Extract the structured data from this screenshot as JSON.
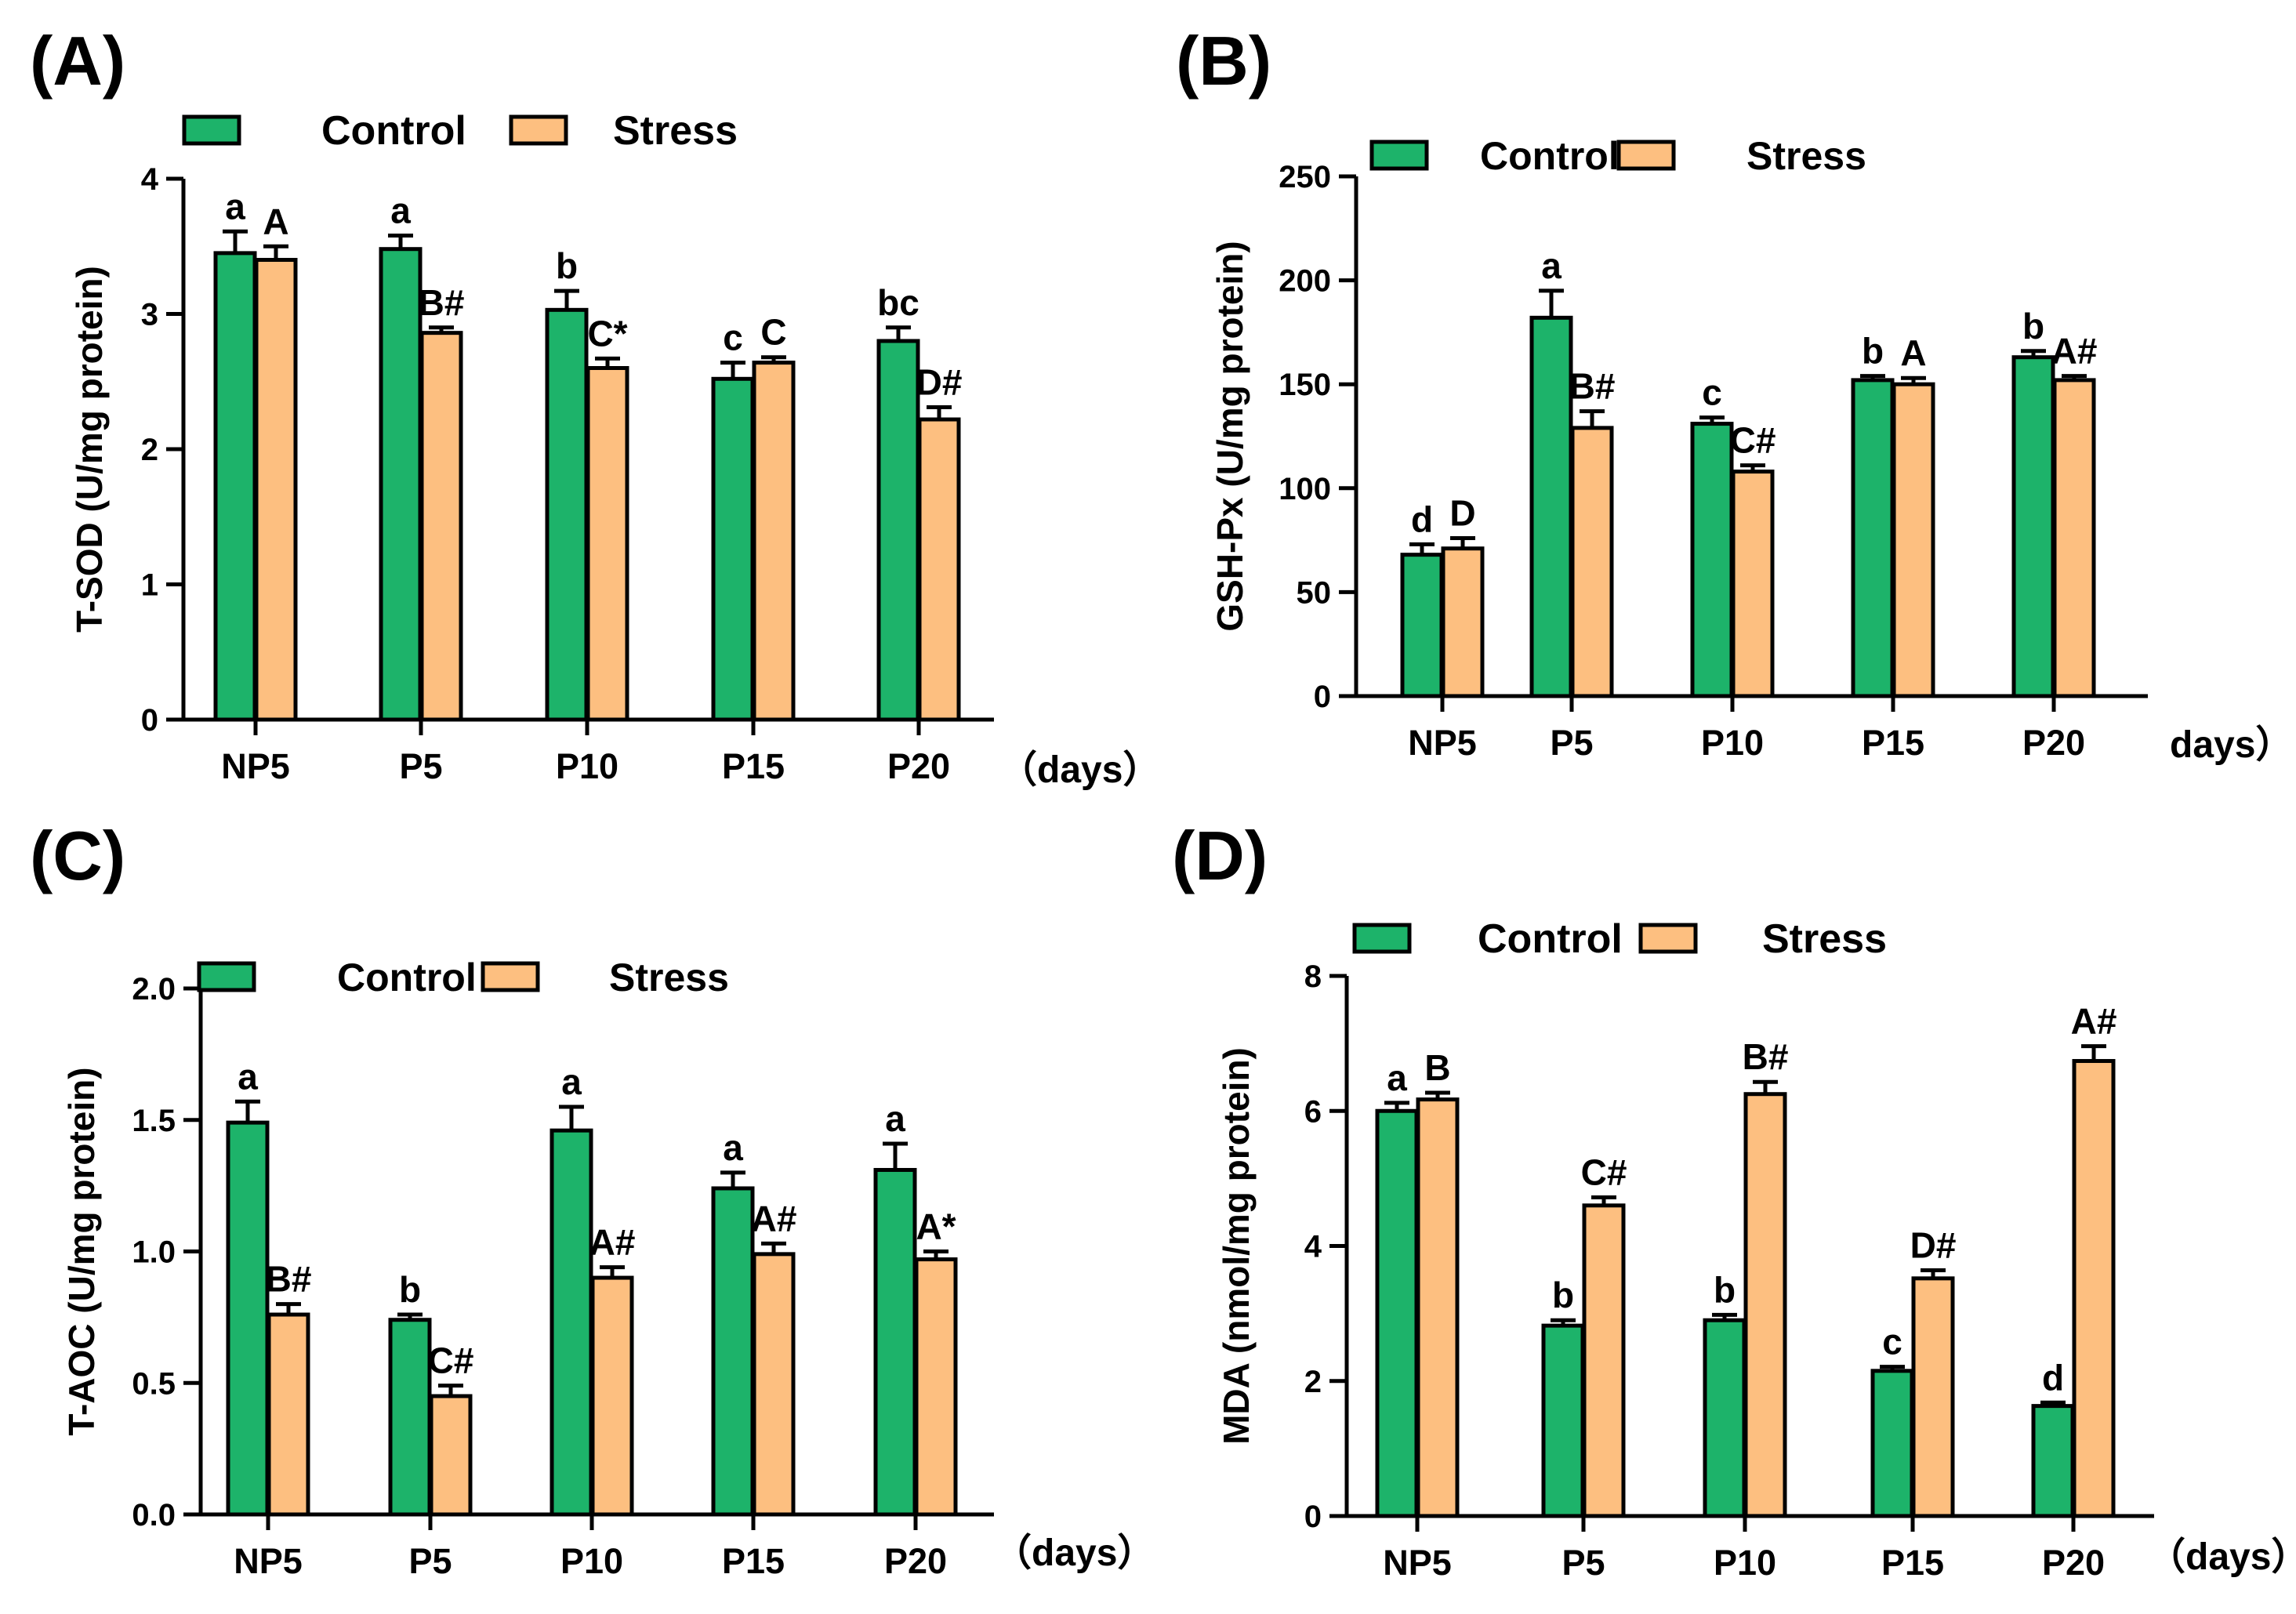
{
  "colors": {
    "control_fill": "#1db36a",
    "stress_fill": "#fdbf80",
    "stroke": "#000000"
  },
  "chart_data": [
    {
      "type": "bar",
      "panel_label": "(A)",
      "title": "",
      "categories": [
        "NP5",
        "P5",
        "P10",
        "P15",
        "P20"
      ],
      "xlabel": "（days）",
      "ylabel": "T-SOD (U/mg protein)",
      "ylim": [
        0,
        4
      ],
      "yticks": [
        "0",
        "1",
        "2",
        "3",
        "4"
      ],
      "ytick_values": [
        0,
        1,
        2,
        3,
        4
      ],
      "legend": [
        "Control",
        "Stress"
      ],
      "series": [
        {
          "name": "Control",
          "values": [
            3.45,
            3.48,
            3.03,
            2.52,
            2.8
          ],
          "errors": [
            0.16,
            0.1,
            0.14,
            0.12,
            0.1
          ],
          "labels": [
            "a",
            "a",
            "b",
            "c",
            "bc"
          ]
        },
        {
          "name": "Stress",
          "values": [
            3.4,
            2.86,
            2.6,
            2.64,
            2.22
          ],
          "errors": [
            0.1,
            0.04,
            0.07,
            0.04,
            0.09
          ],
          "labels": [
            "A",
            "B#",
            "C*",
            "C",
            "D#"
          ]
        }
      ]
    },
    {
      "type": "bar",
      "panel_label": "(B)",
      "title": "",
      "categories": [
        "NP5",
        "P5",
        "P10",
        "P15",
        "P20"
      ],
      "xlabel": "days）",
      "ylabel": "GSH-Px (U/mg protein)",
      "ylim": [
        0,
        250
      ],
      "yticks": [
        "0",
        "50",
        "100",
        "150",
        "200",
        "250"
      ],
      "ytick_values": [
        0,
        50,
        100,
        150,
        200,
        250
      ],
      "legend": [
        "Control",
        "Stress"
      ],
      "series": [
        {
          "name": "Control",
          "values": [
            68,
            182,
            131,
            152,
            163
          ],
          "errors": [
            5,
            13,
            3,
            2,
            3
          ],
          "labels": [
            "d",
            "a",
            "c",
            "b",
            "b"
          ]
        },
        {
          "name": "Stress",
          "values": [
            71,
            129,
            108,
            150,
            152
          ],
          "errors": [
            5,
            8,
            3,
            3,
            2
          ],
          "labels": [
            "D",
            "B#",
            "C#",
            "A",
            "A#"
          ]
        }
      ]
    },
    {
      "type": "bar",
      "panel_label": "(C)",
      "title": "",
      "categories": [
        "NP5",
        "P5",
        "P10",
        "P15",
        "P20"
      ],
      "xlabel": "（days）",
      "ylabel": "T-AOC (U/mg protein)",
      "ylim": [
        0,
        2.0
      ],
      "yticks": [
        "0.0",
        "0.5",
        "1.0",
        "1.5",
        "2.0"
      ],
      "ytick_values": [
        0,
        0.5,
        1.0,
        1.5,
        2.0
      ],
      "legend": [
        "Control",
        "Stress"
      ],
      "series": [
        {
          "name": "Control",
          "values": [
            1.49,
            0.74,
            1.46,
            1.24,
            1.31
          ],
          "errors": [
            0.08,
            0.02,
            0.09,
            0.06,
            0.1
          ],
          "labels": [
            "a",
            "b",
            "a",
            "a",
            "a"
          ]
        },
        {
          "name": "Stress",
          "values": [
            0.76,
            0.45,
            0.9,
            0.99,
            0.97
          ],
          "errors": [
            0.04,
            0.04,
            0.04,
            0.04,
            0.03
          ],
          "labels": [
            "B#",
            "C#",
            "A#",
            "A#",
            "A*"
          ]
        }
      ]
    },
    {
      "type": "bar",
      "panel_label": "(D)",
      "title": "",
      "categories": [
        "NP5",
        "P5",
        "P10",
        "P15",
        "P20"
      ],
      "xlabel": "（days）",
      "ylabel": "MDA (nmol/mg protein)",
      "ylim": [
        0,
        8
      ],
      "yticks": [
        "0",
        "2",
        "4",
        "6",
        "8"
      ],
      "ytick_values": [
        0,
        2,
        4,
        6,
        8
      ],
      "legend": [
        "Control",
        "Stress"
      ],
      "series": [
        {
          "name": "Control",
          "values": [
            6.0,
            2.82,
            2.9,
            2.15,
            1.63
          ],
          "errors": [
            0.12,
            0.08,
            0.08,
            0.06,
            0.05
          ],
          "labels": [
            "a",
            "b",
            "b",
            "c",
            "d"
          ]
        },
        {
          "name": "Stress",
          "values": [
            6.17,
            4.6,
            6.25,
            3.52,
            6.74
          ],
          "errors": [
            0.1,
            0.12,
            0.18,
            0.12,
            0.22
          ],
          "labels": [
            "B",
            "C#",
            "B#",
            "D#",
            "A#"
          ]
        }
      ]
    }
  ]
}
